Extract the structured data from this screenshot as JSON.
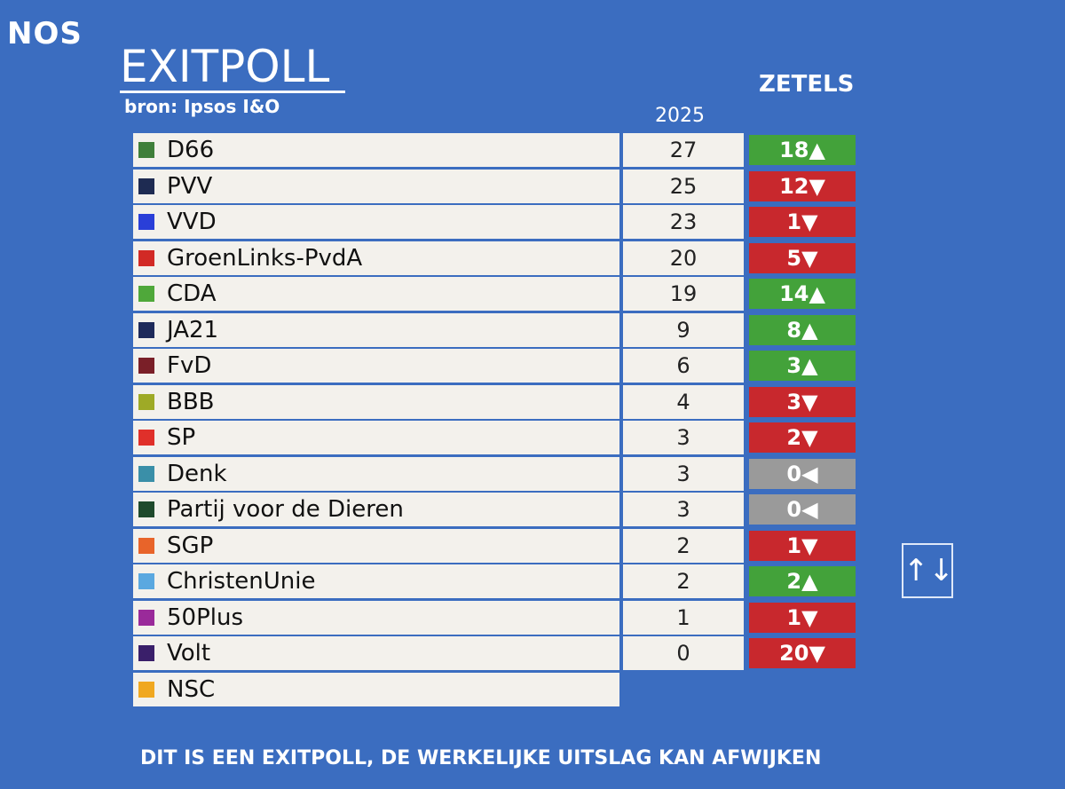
{
  "header": {
    "logo": "NOS",
    "title": "EXITPOLL",
    "source": "bron: Ipsos I&O",
    "seats_label": "ZETELS",
    "year": "2025"
  },
  "table": {
    "rows": [
      {
        "party": "D66",
        "color": "#3f7f3a",
        "seats": 27,
        "change": "18▲",
        "change_color": "#43a23a"
      },
      {
        "party": "PVV",
        "color": "#1e2b52",
        "seats": 25,
        "change": "12▼",
        "change_color": "#c8282d"
      },
      {
        "party": "VVD",
        "color": "#2a3fd8",
        "seats": 23,
        "change": "1▼",
        "change_color": "#c8282d"
      },
      {
        "party": "GroenLinks-PvdA",
        "color": "#d22a25",
        "seats": 20,
        "change": "5▼",
        "change_color": "#c8282d"
      },
      {
        "party": "CDA",
        "color": "#4fa83a",
        "seats": 19,
        "change": "14▲",
        "change_color": "#43a23a"
      },
      {
        "party": "JA21",
        "color": "#1e2a5a",
        "seats": 9,
        "change": "8▲",
        "change_color": "#43a23a"
      },
      {
        "party": "FvD",
        "color": "#7a1f28",
        "seats": 6,
        "change": "3▲",
        "change_color": "#43a23a"
      },
      {
        "party": "BBB",
        "color": "#9eaa26",
        "seats": 4,
        "change": "3▼",
        "change_color": "#c8282d"
      },
      {
        "party": "SP",
        "color": "#e0302a",
        "seats": 3,
        "change": "2▼",
        "change_color": "#c8282d"
      },
      {
        "party": "Denk",
        "color": "#3a8fa8",
        "seats": 3,
        "change": "0◀",
        "change_color": "#9a9a9a"
      },
      {
        "party": "Partij voor de Dieren",
        "color": "#1f4a2c",
        "seats": 3,
        "change": "0◀",
        "change_color": "#9a9a9a"
      },
      {
        "party": "SGP",
        "color": "#e8642a",
        "seats": 2,
        "change": "1▼",
        "change_color": "#c8282d"
      },
      {
        "party": "ChristenUnie",
        "color": "#5aa8e0",
        "seats": 2,
        "change": "2▲",
        "change_color": "#43a23a"
      },
      {
        "party": "50Plus",
        "color": "#9a2a9a",
        "seats": 1,
        "change": "1▼",
        "change_color": "#c8282d"
      },
      {
        "party": "Volt",
        "color": "#3a1f6a",
        "seats": 0,
        "change": "20▼",
        "change_color": "#c8282d"
      },
      {
        "party": "NSC",
        "color": "#f0a820"
      }
    ]
  },
  "footer": {
    "disclaimer": "DIT IS EEN EXITPOLL, DE WERKELIJKE UITSLAG KAN AFWIJKEN"
  }
}
